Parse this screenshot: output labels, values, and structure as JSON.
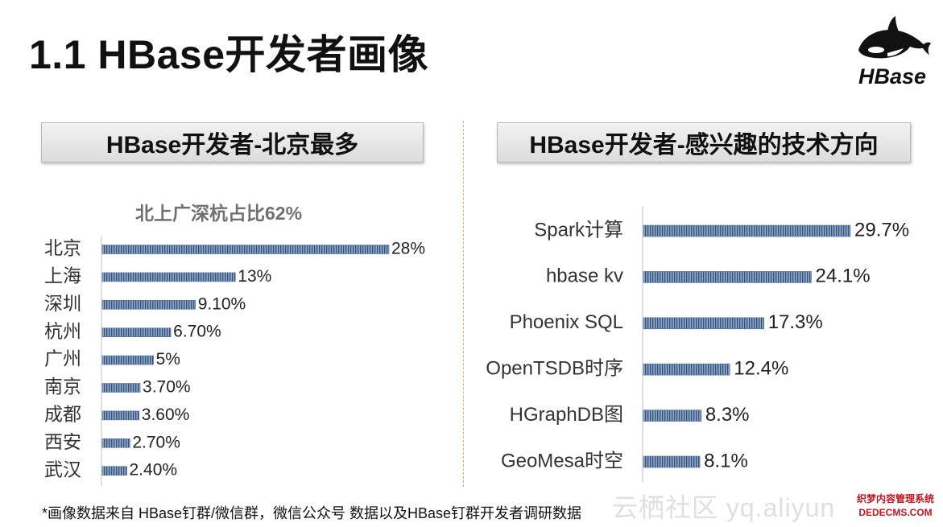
{
  "slide": {
    "title": "1.1 HBase开发者画像",
    "logo_text": "HBase",
    "footnote": "*画像数据来自 HBase钉群/微信群，微信公众号 数据以及HBase钉群开发者调研数据",
    "watermark": "云栖社区 yq.aliyun",
    "stamp_line1": "织梦内容管理系统",
    "stamp_line2": "DEDECMS.COM"
  },
  "colors": {
    "bar_fill": "#7f98b8",
    "bar_stripe": "#2f4d7a",
    "axis": "#bfbfbf"
  },
  "left_header": "HBase开发者-北京最多",
  "right_header": "HBase开发者-感兴趣的技术方向",
  "left_subtitle": "北上广深杭占比62%",
  "chart_data": [
    {
      "type": "bar",
      "orientation": "horizontal",
      "title": "HBase开发者-北京最多",
      "subtitle": "北上广深杭占比62%",
      "categories": [
        "北京",
        "上海",
        "深圳",
        "杭州",
        "广州",
        "南京",
        "成都",
        "西安",
        "武汉"
      ],
      "values": [
        28,
        13,
        9.1,
        6.7,
        5,
        3.7,
        3.6,
        2.7,
        2.4
      ],
      "labels": [
        "28%",
        "13%",
        "9.10%",
        "6.70%",
        "5%",
        "3.70%",
        "3.60%",
        "2.70%",
        "2.40%"
      ],
      "xlim": [
        0,
        28
      ],
      "unit": "%"
    },
    {
      "type": "bar",
      "orientation": "horizontal",
      "title": "HBase开发者-感兴趣的技术方向",
      "categories": [
        "Spark计算",
        "hbase kv",
        "Phoenix SQL",
        "OpenTSDB时序",
        "HGraphDB图",
        "GeoMesa时空"
      ],
      "values": [
        29.7,
        24.1,
        17.3,
        12.4,
        8.3,
        8.1
      ],
      "labels": [
        "29.7%",
        "24.1%",
        "17.3%",
        "12.4%",
        "8.3%",
        "8.1%"
      ],
      "xlim": [
        0,
        29.7
      ],
      "unit": "%"
    }
  ]
}
